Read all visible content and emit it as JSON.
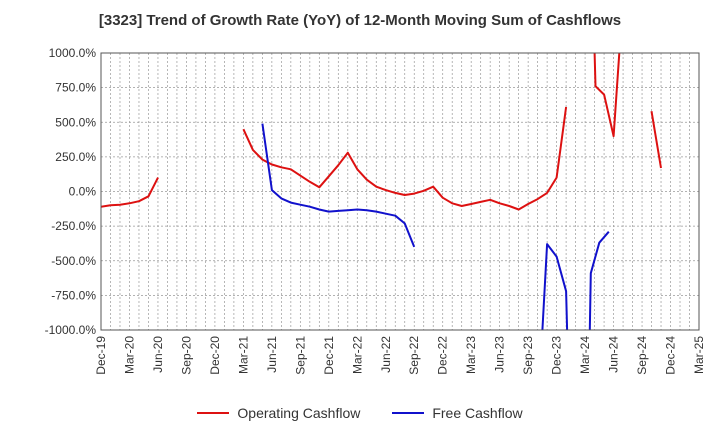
{
  "chart_data": {
    "type": "line",
    "title": "[3323]  Trend of Growth Rate (YoY) of 12-Month Moving Sum of Cashflows",
    "xlabel": "",
    "ylabel": "",
    "x_categories": [
      "Dec-19",
      "Mar-20",
      "Jun-20",
      "Sep-20",
      "Dec-20",
      "Mar-21",
      "Jun-21",
      "Sep-21",
      "Dec-21",
      "Mar-22",
      "Jun-22",
      "Sep-22",
      "Dec-22",
      "Mar-23",
      "Jun-23",
      "Sep-23",
      "Dec-23",
      "Mar-24",
      "Jun-24",
      "Sep-24",
      "Dec-24",
      "Mar-25"
    ],
    "y_ticks": [
      1000,
      750,
      500,
      250,
      0,
      -250,
      -500,
      -750,
      -1000
    ],
    "y_tick_labels": [
      "1000.0%",
      "750.0%",
      "500.0%",
      "250.0%",
      "0.0%",
      "-250.0%",
      "-500.0%",
      "-750.0%",
      "-1000.0%"
    ],
    "ylim": [
      -1000,
      1000
    ],
    "grid": true,
    "legend_position": "bottom",
    "series": [
      {
        "name": "Operating Cashflow",
        "color": "#dd1111",
        "segments": [
          [
            [
              0,
              -110
            ],
            [
              1,
              -100
            ],
            [
              2,
              -95
            ],
            [
              3,
              -85
            ],
            [
              4,
              -70
            ],
            [
              5,
              -35
            ],
            [
              6,
              100
            ]
          ],
          [
            [
              15,
              450
            ],
            [
              16,
              300
            ],
            [
              17,
              230
            ],
            [
              18,
              195
            ],
            [
              19,
              175
            ],
            [
              20,
              160
            ],
            [
              21,
              115
            ],
            [
              22,
              70
            ],
            [
              23,
              30
            ],
            [
              24,
              110
            ],
            [
              25,
              190
            ],
            [
              26,
              280
            ],
            [
              27,
              160
            ],
            [
              28,
              85
            ],
            [
              29,
              35
            ],
            [
              30,
              10
            ],
            [
              31,
              -10
            ],
            [
              32,
              -25
            ],
            [
              33,
              -15
            ],
            [
              34,
              5
            ],
            [
              35,
              35
            ],
            [
              36,
              -45
            ],
            [
              37,
              -85
            ],
            [
              38,
              -105
            ],
            [
              39,
              -90
            ],
            [
              40,
              -75
            ],
            [
              41,
              -60
            ],
            [
              42,
              -85
            ],
            [
              43,
              -105
            ],
            [
              44,
              -130
            ],
            [
              45,
              -90
            ],
            [
              46,
              -55
            ],
            [
              47,
              -10
            ],
            [
              48,
              100
            ],
            [
              49,
              610
            ]
          ],
          [
            [
              52,
              1000
            ],
            [
              52.1,
              760
            ],
            [
              53,
              700
            ],
            [
              54,
              400
            ],
            [
              54.6,
              1000
            ]
          ],
          [
            [
              58,
              580
            ],
            [
              59,
              170
            ]
          ]
        ]
      },
      {
        "name": "Free Cashflow",
        "color": "#1111cc",
        "segments": [
          [
            [
              17,
              490
            ],
            [
              18,
              10
            ],
            [
              19,
              -50
            ],
            [
              20,
              -80
            ],
            [
              21,
              -95
            ],
            [
              22,
              -110
            ],
            [
              23,
              -130
            ],
            [
              24,
              -145
            ],
            [
              25,
              -140
            ],
            [
              26,
              -135
            ],
            [
              27,
              -130
            ],
            [
              28,
              -135
            ],
            [
              29,
              -145
            ],
            [
              30,
              -160
            ],
            [
              31,
              -175
            ],
            [
              32,
              -230
            ],
            [
              33,
              -400
            ]
          ],
          [
            [
              46.5,
              -1000
            ],
            [
              47,
              -380
            ],
            [
              48,
              -470
            ],
            [
              49,
              -720
            ],
            [
              49.1,
              -1000
            ]
          ],
          [
            [
              51.5,
              -1000
            ],
            [
              51.6,
              -590
            ],
            [
              52.5,
              -370
            ],
            [
              53.5,
              -290
            ]
          ]
        ]
      }
    ]
  }
}
